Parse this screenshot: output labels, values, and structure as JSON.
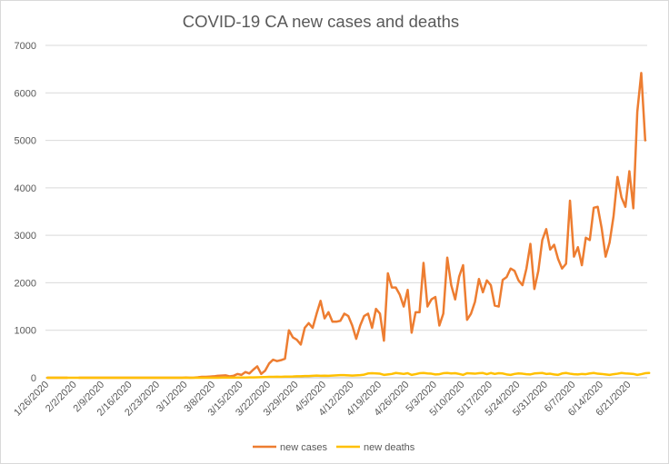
{
  "chart_data": {
    "type": "line",
    "title": "COVID-19 CA new cases and deaths",
    "xlabel": "",
    "ylabel": "",
    "ylim": [
      0,
      7000
    ],
    "y_ticks": [
      "0",
      "1000",
      "2000",
      "3000",
      "4000",
      "5000",
      "6000",
      "7000"
    ],
    "x_tick_labels": [
      "1/26/2020",
      "2/2/2020",
      "2/9/2020",
      "2/16/2020",
      "2/23/2020",
      "3/1/2020",
      "3/8/2020",
      "3/15/2020",
      "3/22/2020",
      "3/29/2020",
      "4/5/2020",
      "4/12/2020",
      "4/19/2020",
      "4/26/2020",
      "5/3/2020",
      "5/10/2020",
      "5/17/2020",
      "5/24/2020",
      "5/31/2020",
      "6/7/2020",
      "6/14/2020",
      "6/21/2020"
    ],
    "x_start_date": "1/26/2020",
    "gridlines": true,
    "legend_position": "bottom",
    "series": [
      {
        "name": "new cases",
        "color": "#ED7D31",
        "gaps": [
          [
            6,
            7
          ]
        ],
        "values": [
          1,
          1,
          1,
          1,
          1,
          1,
          1,
          1,
          1,
          1,
          1,
          1,
          1,
          1,
          1,
          1,
          1,
          1,
          1,
          1,
          1,
          1,
          1,
          1,
          1,
          1,
          1,
          1,
          1,
          1,
          1,
          1,
          1,
          1,
          1,
          5,
          1,
          2,
          10,
          20,
          20,
          25,
          30,
          40,
          45,
          50,
          30,
          40,
          80,
          60,
          120,
          90,
          170,
          240,
          80,
          150,
          300,
          380,
          350,
          370,
          400,
          1000,
          850,
          800,
          700,
          1050,
          1150,
          1050,
          1350,
          1620,
          1250,
          1380,
          1180,
          1180,
          1200,
          1350,
          1300,
          1100,
          820,
          1100,
          1300,
          1350,
          1050,
          1450,
          1350,
          780,
          2200,
          1900,
          1900,
          1750,
          1500,
          1850,
          950,
          1380,
          1380,
          2420,
          1500,
          1650,
          1700,
          1100,
          1350,
          2530,
          1950,
          1650,
          2130,
          2370,
          1220,
          1350,
          1600,
          2080,
          1800,
          2050,
          1950,
          1520,
          1500,
          2060,
          2120,
          2300,
          2250,
          2050,
          1950,
          2300,
          2820,
          1870,
          2250,
          2900,
          3130,
          2700,
          2800,
          2500,
          2300,
          2400,
          3730,
          2550,
          2750,
          2370,
          2950,
          2900,
          3580,
          3600,
          3150,
          2550,
          2850,
          3400,
          4230,
          3800,
          3600,
          4350,
          3570,
          5600,
          6420,
          5000
        ]
      },
      {
        "name": "new deaths",
        "color": "#FFC000",
        "gaps": [],
        "values": [
          0,
          0,
          0,
          0,
          0,
          0,
          0,
          0,
          0,
          0,
          0,
          0,
          0,
          0,
          0,
          0,
          0,
          0,
          0,
          0,
          0,
          0,
          0,
          0,
          0,
          0,
          0,
          0,
          0,
          0,
          0,
          0,
          0,
          0,
          0,
          0,
          0,
          0,
          0,
          0,
          1,
          0,
          1,
          1,
          2,
          2,
          3,
          3,
          4,
          5,
          6,
          7,
          8,
          10,
          12,
          15,
          18,
          20,
          22,
          20,
          25,
          24,
          26,
          30,
          32,
          35,
          35,
          40,
          45,
          40,
          42,
          40,
          45,
          50,
          55,
          55,
          50,
          45,
          50,
          55,
          65,
          90,
          95,
          90,
          85,
          60,
          70,
          80,
          100,
          90,
          80,
          95,
          60,
          75,
          95,
          100,
          90,
          85,
          70,
          75,
          95,
          100,
          90,
          95,
          80,
          60,
          95,
          90,
          85,
          95,
          100,
          75,
          100,
          80,
          95,
          90,
          70,
          60,
          80,
          90,
          85,
          75,
          70,
          90,
          95,
          100,
          80,
          85,
          70,
          60,
          90,
          100,
          85,
          75,
          70,
          80,
          75,
          90,
          100,
          85,
          80,
          70,
          60,
          75,
          85,
          100,
          90,
          85,
          80,
          60,
          75,
          95,
          100
        ]
      }
    ]
  }
}
